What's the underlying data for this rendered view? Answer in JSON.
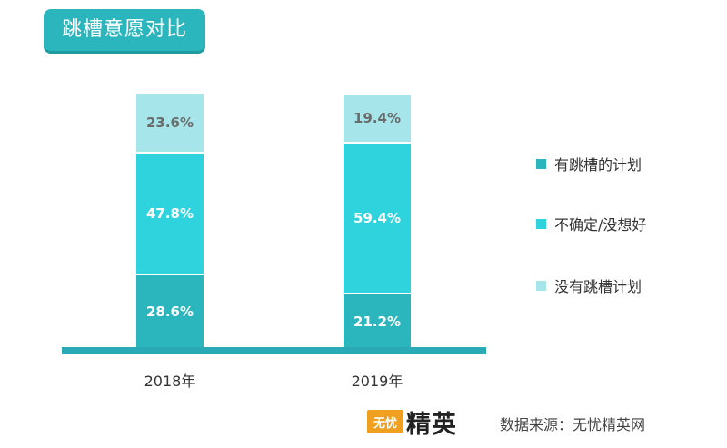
{
  "title": "跳槽意愿对比",
  "chart_data": {
    "type": "bar",
    "stacked": true,
    "categories": [
      "2018年",
      "2019年"
    ],
    "series": [
      {
        "name": "有跳槽的计划",
        "color": "#2bb6bd",
        "values": [
          28.6,
          21.2
        ],
        "labels": [
          "28.6%",
          "21.2%"
        ]
      },
      {
        "name": "不确定/没想好",
        "color": "#2fd3de",
        "values": [
          47.8,
          59.4
        ],
        "labels": [
          "47.8%",
          "59.4%"
        ]
      },
      {
        "name": "没有跳槽计划",
        "color": "#a6e6ea",
        "values": [
          23.6,
          19.4
        ],
        "labels": [
          "23.6%",
          "19.4%"
        ]
      }
    ],
    "legend_position": "right",
    "ylim": [
      0,
      100
    ]
  },
  "footer": {
    "logo_box_text": "无忧",
    "logo_text": "精英",
    "source_text": "数据来源：无忧精英网"
  }
}
